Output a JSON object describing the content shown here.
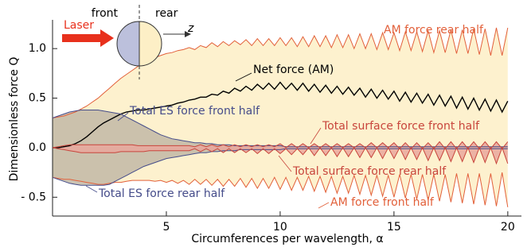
{
  "chart_data": {
    "type": "line",
    "xlabel": "Circumferences per wavelength, α",
    "ylabel": "Dimensionless force Q",
    "inset": {
      "front": "front",
      "rear": "rear",
      "laser": "Laser",
      "axis": "z"
    },
    "x": [
      0,
      0.25,
      0.5,
      0.75,
      1,
      1.25,
      1.5,
      1.75,
      2,
      2.25,
      2.5,
      2.75,
      3,
      3.25,
      3.5,
      3.75,
      4,
      4.25,
      4.5,
      4.75,
      5,
      5.25,
      5.5,
      5.75,
      6,
      6.25,
      6.5,
      6.75,
      7,
      7.25,
      7.5,
      7.75,
      8,
      8.25,
      8.5,
      8.75,
      9,
      9.25,
      9.5,
      9.75,
      10,
      10.25,
      10.5,
      10.75,
      11,
      11.25,
      11.5,
      11.75,
      12,
      12.25,
      12.5,
      12.75,
      13,
      13.25,
      13.5,
      13.75,
      14,
      14.25,
      14.5,
      14.75,
      15,
      15.25,
      15.5,
      15.75,
      16,
      16.25,
      16.5,
      16.75,
      17,
      17.25,
      17.5,
      17.75,
      18,
      18.25,
      18.5,
      18.75,
      19,
      19.25,
      19.5,
      19.75,
      20
    ],
    "series": [
      {
        "name": "AM force rear half",
        "color": "#e2603a",
        "fill_color": "#fdefc6",
        "values": [
          0.3,
          0.31,
          0.32,
          0.34,
          0.36,
          0.39,
          0.42,
          0.46,
          0.5,
          0.55,
          0.6,
          0.65,
          0.7,
          0.74,
          0.78,
          0.82,
          0.85,
          0.88,
          0.91,
          0.93,
          0.95,
          0.96,
          0.98,
          0.99,
          1.01,
          0.99,
          1.03,
          1.01,
          1.06,
          1.02,
          1.07,
          1.03,
          1.08,
          1.04,
          1.09,
          1.03,
          1.1,
          1.03,
          1.1,
          1.03,
          1.11,
          1.03,
          1.11,
          1.02,
          1.12,
          1.02,
          1.13,
          1.02,
          1.13,
          1.01,
          1.14,
          1.01,
          1.14,
          1.0,
          1.15,
          1.0,
          1.15,
          0.99,
          1.16,
          0.99,
          1.16,
          0.98,
          1.17,
          0.98,
          1.17,
          0.97,
          1.18,
          0.96,
          1.18,
          0.96,
          1.19,
          0.95,
          1.19,
          0.95,
          1.2,
          0.94,
          1.2,
          0.93,
          1.21,
          0.93,
          1.21
        ]
      },
      {
        "name": "AM force front half",
        "color": "#e2603a",
        "values": [
          -0.3,
          -0.31,
          -0.32,
          -0.32,
          -0.33,
          -0.34,
          -0.35,
          -0.36,
          -0.37,
          -0.37,
          -0.36,
          -0.35,
          -0.35,
          -0.34,
          -0.33,
          -0.33,
          -0.33,
          -0.33,
          -0.34,
          -0.33,
          -0.35,
          -0.33,
          -0.36,
          -0.33,
          -0.37,
          -0.32,
          -0.37,
          -0.32,
          -0.38,
          -0.32,
          -0.39,
          -0.32,
          -0.39,
          -0.31,
          -0.4,
          -0.31,
          -0.41,
          -0.31,
          -0.41,
          -0.3,
          -0.42,
          -0.3,
          -0.43,
          -0.3,
          -0.43,
          -0.29,
          -0.44,
          -0.29,
          -0.45,
          -0.29,
          -0.46,
          -0.29,
          -0.46,
          -0.28,
          -0.47,
          -0.28,
          -0.48,
          -0.28,
          -0.49,
          -0.28,
          -0.5,
          -0.27,
          -0.51,
          -0.27,
          -0.52,
          -0.27,
          -0.53,
          -0.27,
          -0.54,
          -0.27,
          -0.55,
          -0.26,
          -0.56,
          -0.26,
          -0.57,
          -0.26,
          -0.58,
          -0.26,
          -0.59,
          -0.25,
          -0.6
        ]
      },
      {
        "name": "Net force (AM)",
        "color": "#000000",
        "values": [
          0,
          0,
          0.01,
          0.02,
          0.04,
          0.07,
          0.11,
          0.16,
          0.21,
          0.25,
          0.28,
          0.31,
          0.34,
          0.36,
          0.37,
          0.38,
          0.38,
          0.39,
          0.4,
          0.41,
          0.42,
          0.43,
          0.45,
          0.46,
          0.48,
          0.49,
          0.51,
          0.51,
          0.54,
          0.53,
          0.57,
          0.55,
          0.6,
          0.57,
          0.62,
          0.58,
          0.64,
          0.59,
          0.65,
          0.59,
          0.66,
          0.59,
          0.65,
          0.58,
          0.65,
          0.57,
          0.64,
          0.56,
          0.63,
          0.55,
          0.62,
          0.54,
          0.61,
          0.53,
          0.6,
          0.51,
          0.59,
          0.5,
          0.58,
          0.49,
          0.57,
          0.47,
          0.56,
          0.46,
          0.55,
          0.45,
          0.54,
          0.43,
          0.53,
          0.42,
          0.52,
          0.4,
          0.51,
          0.39,
          0.5,
          0.38,
          0.49,
          0.37,
          0.48,
          0.36,
          0.47
        ]
      },
      {
        "name": "Total ES force front half",
        "color": "#454c8a",
        "fill_color": "#c2b8a6",
        "values": [
          0.3,
          0.32,
          0.34,
          0.36,
          0.37,
          0.38,
          0.38,
          0.38,
          0.38,
          0.37,
          0.36,
          0.35,
          0.34,
          0.31,
          0.28,
          0.25,
          0.22,
          0.19,
          0.16,
          0.13,
          0.11,
          0.09,
          0.08,
          0.07,
          0.06,
          0.05,
          0.05,
          0.04,
          0.04,
          0.03,
          0.03,
          0.03,
          0.02,
          0.02,
          0.02,
          0.02,
          0.02,
          0.02,
          0.02,
          0.02,
          0.02,
          0.01,
          0.01,
          0.01,
          0.01,
          0.01,
          0.01,
          0.01,
          0.01,
          0.01,
          0.01,
          0.01,
          0.01,
          0.01,
          0.01,
          0.01,
          0.01,
          0.01,
          0.01,
          0.01,
          0.01,
          0.01,
          0.01,
          0.01,
          0.01,
          0.01,
          0.01,
          0.01,
          0.01,
          0.01,
          0.01,
          0.01,
          0.01,
          0.01,
          0.01,
          0.01,
          0.01,
          0.01,
          0.01,
          0.01,
          0.01
        ]
      },
      {
        "name": "Total ES force rear half",
        "color": "#454c8a",
        "values": [
          -0.3,
          -0.32,
          -0.34,
          -0.36,
          -0.37,
          -0.38,
          -0.38,
          -0.38,
          -0.38,
          -0.38,
          -0.37,
          -0.34,
          -0.31,
          -0.28,
          -0.25,
          -0.22,
          -0.19,
          -0.17,
          -0.15,
          -0.13,
          -0.11,
          -0.1,
          -0.09,
          -0.08,
          -0.07,
          -0.06,
          -0.05,
          -0.05,
          -0.04,
          -0.04,
          -0.03,
          -0.03,
          -0.03,
          -0.02,
          -0.02,
          -0.02,
          -0.02,
          -0.02,
          -0.02,
          -0.02,
          -0.02,
          -0.01,
          -0.01,
          -0.01,
          -0.01,
          -0.01,
          -0.01,
          -0.01,
          -0.01,
          -0.01,
          -0.01,
          -0.01,
          -0.01,
          -0.01,
          -0.01,
          -0.01,
          -0.01,
          -0.01,
          -0.01,
          -0.01,
          -0.01,
          -0.01,
          -0.01,
          -0.01,
          -0.01,
          -0.01,
          -0.01,
          -0.01,
          -0.01,
          -0.01,
          -0.01,
          -0.01,
          -0.01,
          -0.01,
          -0.01,
          -0.01,
          -0.01,
          -0.01,
          -0.01,
          -0.01,
          -0.01
        ]
      },
      {
        "name": "Total surface force front half",
        "color": "#c8453c",
        "fill_color": "#e9a79c",
        "values": [
          0,
          0.01,
          0.02,
          0.03,
          0.03,
          0.03,
          0.03,
          0.03,
          0.03,
          0.03,
          0.03,
          0.03,
          0.03,
          0.03,
          0.03,
          0.02,
          0.02,
          0.02,
          0.02,
          0.02,
          0.02,
          0.02,
          0.02,
          0.02,
          0.02,
          0.01,
          0.03,
          0.01,
          0.03,
          0.01,
          0.03,
          0.01,
          0.03,
          0.01,
          0.03,
          0.01,
          0.03,
          0.01,
          0.03,
          0.01,
          0.04,
          0,
          0.04,
          0,
          0.04,
          0,
          0.04,
          0,
          0.04,
          0,
          0.04,
          0,
          0.04,
          0,
          0.04,
          0,
          0.05,
          0,
          0.05,
          0,
          0.05,
          -0.01,
          0.05,
          -0.01,
          0.05,
          -0.01,
          0.05,
          -0.01,
          0.06,
          -0.01,
          0.06,
          -0.01,
          0.06,
          -0.01,
          0.06,
          -0.01,
          0.06,
          -0.01,
          0.06,
          -0.01,
          0.06
        ]
      },
      {
        "name": "Total surface force rear half",
        "color": "#c8453c",
        "values": [
          0,
          -0.01,
          -0.02,
          -0.03,
          -0.04,
          -0.05,
          -0.05,
          -0.05,
          -0.05,
          -0.05,
          -0.05,
          -0.05,
          -0.04,
          -0.04,
          -0.04,
          -0.04,
          -0.04,
          -0.03,
          -0.03,
          -0.03,
          -0.03,
          -0.03,
          -0.03,
          -0.03,
          -0.03,
          -0.01,
          -0.04,
          -0.01,
          -0.04,
          -0.01,
          -0.05,
          -0.01,
          -0.05,
          -0.01,
          -0.05,
          -0.01,
          -0.06,
          -0.01,
          -0.06,
          -0.01,
          -0.06,
          -0.01,
          -0.07,
          -0.01,
          -0.07,
          0,
          -0.08,
          0,
          -0.08,
          0,
          -0.09,
          0,
          -0.09,
          0,
          -0.1,
          0,
          -0.1,
          0,
          -0.11,
          0,
          -0.11,
          0,
          -0.12,
          0,
          -0.12,
          0,
          -0.13,
          0,
          -0.13,
          0,
          -0.14,
          0,
          -0.14,
          0,
          -0.15,
          0,
          -0.15,
          0,
          -0.16,
          0,
          -0.16
        ]
      }
    ],
    "xlim": [
      0,
      20.6
    ],
    "ylim": [
      -0.69,
      1.29
    ],
    "xticks": [
      5,
      10,
      15,
      20
    ],
    "yticks": [
      {
        "value": -0.5,
        "label": "- 0.5"
      },
      {
        "value": 0,
        "label": "0.0"
      },
      {
        "value": 0.5,
        "label": "0.5"
      },
      {
        "value": 1,
        "label": "1.0"
      }
    ]
  }
}
